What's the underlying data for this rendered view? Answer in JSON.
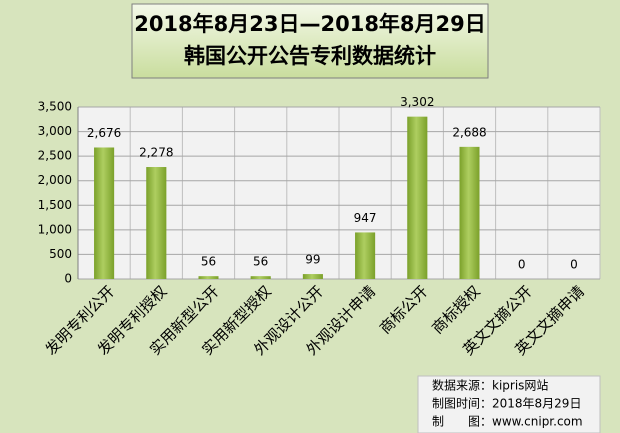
{
  "chart_data": {
    "type": "bar",
    "title": "2018年8月23日—2018年8月29日",
    "subtitle": "韩国公开公告专利数据统计",
    "categories": [
      "发明专利公开",
      "发明专利授权",
      "实用新型公开",
      "实用新型授权",
      "外观设计公开",
      "外观设计申请",
      "商标公开",
      "商标授权",
      "英文文摘公开",
      "英文文摘申请"
    ],
    "values": [
      2676,
      2278,
      56,
      56,
      99,
      947,
      3302,
      2688,
      0,
      0
    ],
    "value_labels": [
      "2,676",
      "2,278",
      "56",
      "56",
      "99",
      "947",
      "3,302",
      "2,688",
      "0",
      "0"
    ],
    "color": "#8db33a",
    "ylim": [
      0,
      3500
    ],
    "yticks": [
      0,
      500,
      {
        "value": 1000,
        "label": "1,000"
      },
      {
        "value": 1500,
        "label": "1,500"
      },
      {
        "value": 2000,
        "label": "2,000"
      },
      {
        "value": 2500,
        "label": "2,500"
      },
      {
        "value": 3000,
        "label": "3,000"
      },
      {
        "value": 3500,
        "label": "3,500"
      }
    ],
    "grid": true
  },
  "source": [
    "数据来源：kipris网站",
    "制图时间：2018年8月29日",
    "制　　图：www.cnipr.com"
  ]
}
